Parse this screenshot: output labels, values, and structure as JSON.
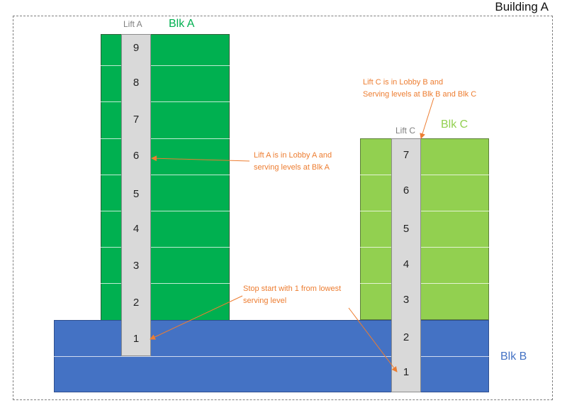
{
  "building_title": "Building A",
  "blocks": {
    "a": {
      "label": "Blk A",
      "color": "#00b050"
    },
    "b": {
      "label": "Blk B",
      "color": "#4472c4"
    },
    "c": {
      "label": "Blk C",
      "color": "#92d050"
    }
  },
  "lifts": {
    "a": {
      "label": "Lift A",
      "floors": [
        "1",
        "2",
        "3",
        "4",
        "5",
        "6",
        "7",
        "8",
        "9"
      ]
    },
    "c": {
      "label": "Lift C",
      "floors": [
        "1",
        "2",
        "3",
        "4",
        "5",
        "6",
        "7"
      ]
    }
  },
  "notes": {
    "lift_a": [
      "Lift A is in Lobby A and",
      "serving levels at Blk A"
    ],
    "lift_c": [
      "Lift C is in Lobby B and",
      "Serving levels at Blk B and Blk C"
    ],
    "stop": [
      "Stop start with 1 from lowest",
      "serving level"
    ]
  },
  "colors": {
    "annotation": "#ed7d31",
    "shaft": "#d9d9d9"
  }
}
